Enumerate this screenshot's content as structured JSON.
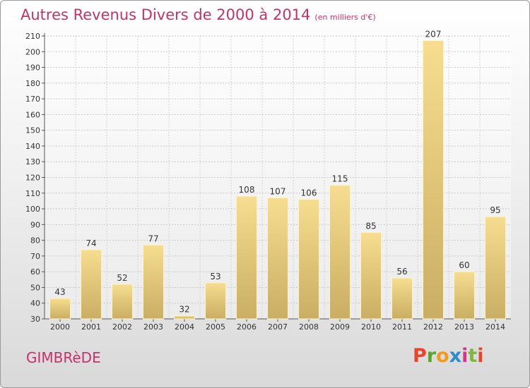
{
  "header": {
    "title": "Autres Revenus Divers de 2000 à 2014",
    "subtitle": "(en milliers d'€)"
  },
  "footer": {
    "commune": "GIMBRèDE",
    "logo": "Proxiti",
    "logo_colors": [
      "#e8442b",
      "#5aa52c",
      "#f19b1d",
      "#2d8ccb",
      "#d7338b",
      "#7cb93d",
      "#e8442b"
    ]
  },
  "colors": {
    "accent": "#c7316a",
    "bar_light": "#f7dd8f",
    "bar_dark": "#c9ae63"
  },
  "chart_data": {
    "type": "bar",
    "categories": [
      "2000",
      "2001",
      "2002",
      "2003",
      "2004",
      "2005",
      "2006",
      "2007",
      "2008",
      "2009",
      "2010",
      "2011",
      "2012",
      "2013",
      "2014"
    ],
    "values": [
      43,
      74,
      52,
      77,
      32,
      53,
      108,
      107,
      106,
      115,
      85,
      56,
      207,
      60,
      95
    ],
    "ylim": [
      30,
      210
    ],
    "yticks": [
      30,
      40,
      50,
      60,
      70,
      80,
      90,
      100,
      110,
      120,
      130,
      140,
      150,
      160,
      170,
      180,
      190,
      200,
      210
    ],
    "grid": true,
    "xlabel": "",
    "ylabel": ""
  }
}
